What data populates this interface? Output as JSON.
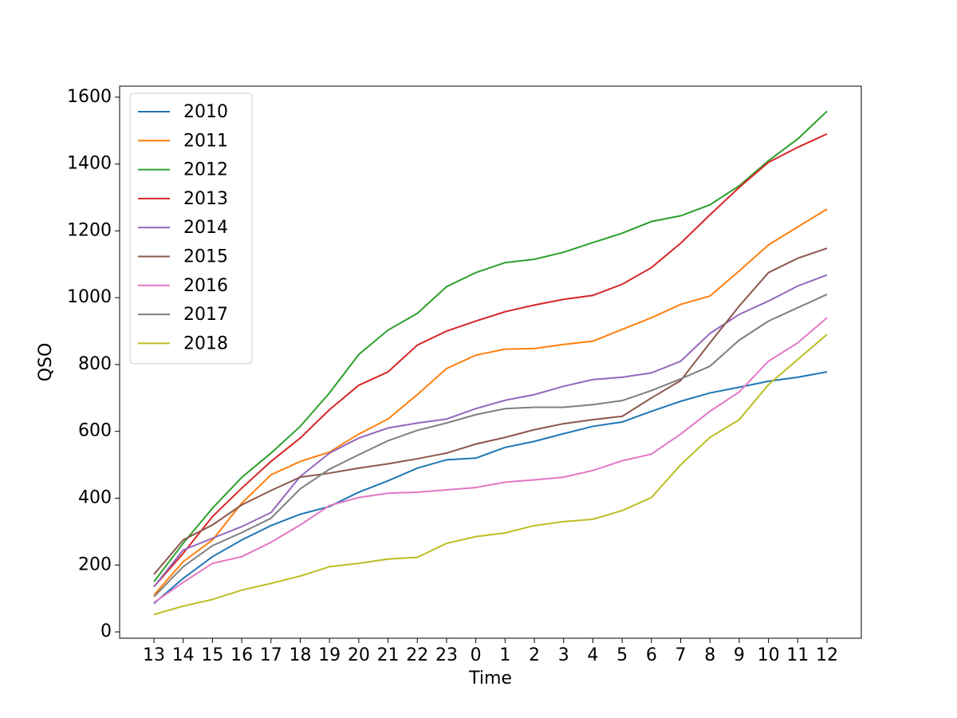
{
  "chart_data": {
    "type": "line",
    "xlabel": "Time",
    "ylabel": "QSO",
    "categories": [
      "13",
      "14",
      "15",
      "16",
      "17",
      "18",
      "19",
      "20",
      "21",
      "22",
      "23",
      "0",
      "1",
      "2",
      "3",
      "4",
      "5",
      "6",
      "7",
      "8",
      "9",
      "10",
      "11",
      "12"
    ],
    "ylim": [
      -19,
      1633
    ],
    "yticks": [
      0,
      200,
      400,
      600,
      800,
      1000,
      1200,
      1400,
      1600
    ],
    "grid": false,
    "legend": "upper left",
    "series": [
      {
        "name": "2010",
        "color": "#1f77b4",
        "values": [
          85,
          160,
          225,
          275,
          318,
          352,
          375,
          418,
          452,
          490,
          515,
          520,
          552,
          570,
          593,
          615,
          628,
          660,
          690,
          715,
          732,
          750,
          762,
          778
        ]
      },
      {
        "name": "2011",
        "color": "#ff7f0e",
        "values": [
          110,
          210,
          275,
          385,
          470,
          510,
          538,
          592,
          637,
          710,
          788,
          828,
          846,
          848,
          860,
          870,
          905,
          940,
          980,
          1005,
          1080,
          1158,
          1212,
          1265
        ]
      },
      {
        "name": "2012",
        "color": "#2ca02c",
        "values": [
          150,
          265,
          370,
          462,
          535,
          615,
          715,
          830,
          903,
          953,
          1033,
          1075,
          1105,
          1115,
          1136,
          1165,
          1193,
          1228,
          1245,
          1278,
          1335,
          1410,
          1475,
          1558
        ]
      },
      {
        "name": "2013",
        "color": "#d62728",
        "values": [
          135,
          235,
          345,
          430,
          510,
          580,
          665,
          738,
          778,
          858,
          900,
          930,
          958,
          978,
          995,
          1007,
          1040,
          1090,
          1163,
          1248,
          1330,
          1405,
          1450,
          1490
        ]
      },
      {
        "name": "2014",
        "color": "#9467bd",
        "values": [
          135,
          245,
          280,
          315,
          357,
          465,
          535,
          580,
          610,
          625,
          637,
          668,
          693,
          710,
          735,
          755,
          762,
          775,
          810,
          893,
          950,
          990,
          1035,
          1068
        ]
      },
      {
        "name": "2015",
        "color": "#8c564b",
        "values": [
          172,
          275,
          320,
          380,
          423,
          463,
          475,
          490,
          503,
          518,
          535,
          562,
          582,
          605,
          623,
          635,
          645,
          700,
          752,
          865,
          975,
          1075,
          1118,
          1148
        ]
      },
      {
        "name": "2016",
        "color": "#e377c2",
        "values": [
          88,
          148,
          205,
          225,
          268,
          320,
          378,
          402,
          415,
          418,
          425,
          432,
          448,
          455,
          463,
          483,
          512,
          532,
          592,
          660,
          718,
          810,
          865,
          940
        ]
      },
      {
        "name": "2017",
        "color": "#7f7f7f",
        "values": [
          105,
          195,
          258,
          297,
          340,
          428,
          487,
          530,
          572,
          603,
          625,
          650,
          668,
          672,
          672,
          680,
          692,
          722,
          757,
          795,
          873,
          930,
          970,
          1010
        ]
      },
      {
        "name": "2018",
        "color": "#bcbd22",
        "values": [
          52,
          77,
          97,
          125,
          145,
          167,
          195,
          205,
          218,
          223,
          265,
          285,
          296,
          318,
          330,
          337,
          363,
          402,
          500,
          582,
          635,
          740,
          815,
          890
        ]
      }
    ]
  }
}
